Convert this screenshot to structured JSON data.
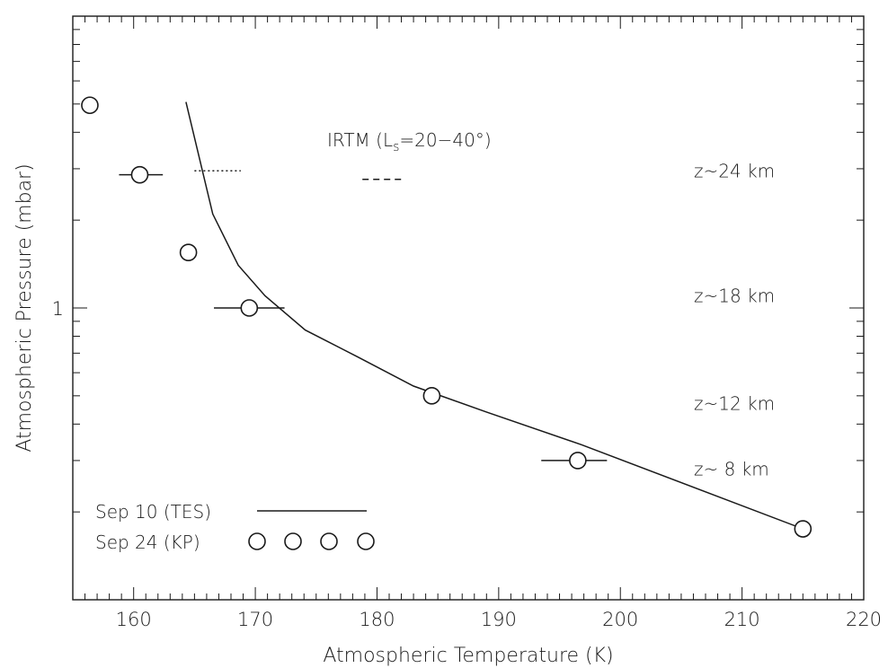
{
  "chart_data": {
    "type": "scatter",
    "xlabel": "Atmospheric Temperature (K)",
    "ylabel": "Atmospheric Pressure (mbar)",
    "xlim": [
      155,
      220
    ],
    "ylim": [
      0.1,
      10
    ],
    "y_scale": "log",
    "x_ticks": [
      160,
      170,
      180,
      190,
      200,
      210,
      220
    ],
    "y_tick_labels": [
      {
        "value": 1,
        "label": "1"
      }
    ],
    "grid": false,
    "series": [
      {
        "name": "Sep 10 (TES)",
        "style": "solid-line",
        "x": [
          164.3,
          166.5,
          168.6,
          170.8,
          174.1,
          178.4,
          183.0,
          189.0,
          196.8,
          215.0
        ],
        "y": [
          5.08,
          2.1,
          1.4,
          1.1,
          0.84,
          0.68,
          0.54,
          0.44,
          0.34,
          0.175
        ]
      },
      {
        "name": "Sep 24 (KP)",
        "style": "open-circle",
        "x": [
          156.4,
          160.5,
          164.5,
          169.5,
          184.5,
          196.5,
          215.0
        ],
        "y": [
          4.95,
          2.86,
          1.55,
          1.0,
          0.5,
          0.3,
          0.175
        ],
        "x_err_lo": [
          0,
          1.7,
          0,
          2.9,
          0,
          3.0,
          0
        ],
        "x_err_hi": [
          0,
          1.9,
          0,
          2.9,
          0,
          2.4,
          0
        ]
      }
    ],
    "irtm": {
      "label": "IRTM (L",
      "label_sub": "s",
      "label_rest": "=20−40°)",
      "segments": [
        {
          "style": "dotted",
          "x": [
            165.0,
            168.8
          ],
          "y": 2.95
        },
        {
          "style": "dashed",
          "x": [
            178.8,
            182.3
          ],
          "y": 2.76
        }
      ]
    },
    "altitude_labels": [
      {
        "text": "z~24 km",
        "y": 2.95
      },
      {
        "text": "z~18 km",
        "y": 1.1
      },
      {
        "text": "z~12 km",
        "y": 0.47
      },
      {
        "text": "z~ 8 km",
        "y": 0.28
      }
    ]
  }
}
